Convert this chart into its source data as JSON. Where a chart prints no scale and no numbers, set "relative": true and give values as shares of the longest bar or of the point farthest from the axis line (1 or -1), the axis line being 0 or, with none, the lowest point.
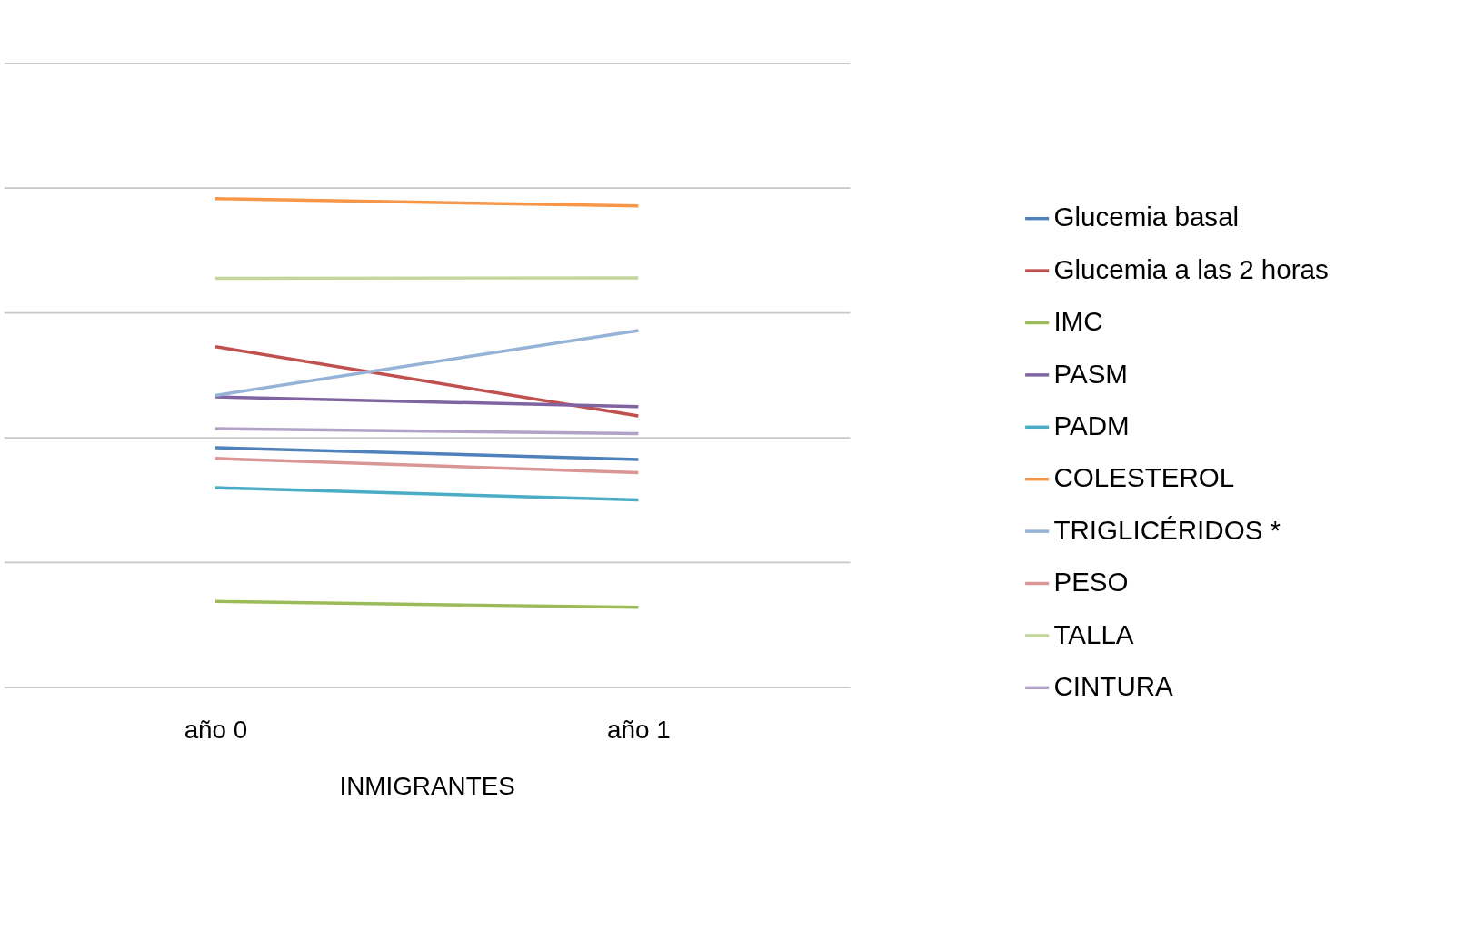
{
  "chart_data": {
    "type": "line",
    "relative": true,
    "xlabel": "INMIGRANTES",
    "categories": [
      "año 0",
      "año 1"
    ],
    "grid": "y",
    "legend": "right",
    "marker": "none",
    "line_style": "solid",
    "series": [
      {
        "name": "Glucemia basal",
        "color": "#4f81bd",
        "values": [
          0.49,
          0.466
        ]
      },
      {
        "name": "Glucemia a las 2 horas",
        "color": "#c0504d",
        "values": [
          0.697,
          0.555
        ]
      },
      {
        "name": "IMC",
        "color": "#9bbb59",
        "values": [
          0.175,
          0.163
        ]
      },
      {
        "name": "PASM",
        "color": "#8064a2",
        "values": [
          0.594,
          0.574
        ]
      },
      {
        "name": "PADM",
        "color": "#4bacc6",
        "values": [
          0.408,
          0.383
        ]
      },
      {
        "name": "COLESTEROL",
        "color": "#f79646",
        "values": [
          1.0,
          0.985
        ]
      },
      {
        "name": "TRIGLICÉRIDOS *",
        "color": "#95b3d7",
        "values": [
          0.597,
          0.73
        ]
      },
      {
        "name": "PESO",
        "color": "#d99694",
        "values": [
          0.468,
          0.439
        ]
      },
      {
        "name": "TALLA",
        "color": "#c3d69b",
        "values": [
          0.837,
          0.838
        ]
      },
      {
        "name": "CINTURA",
        "color": "#b3a2c7",
        "values": [
          0.529,
          0.519
        ]
      }
    ]
  }
}
